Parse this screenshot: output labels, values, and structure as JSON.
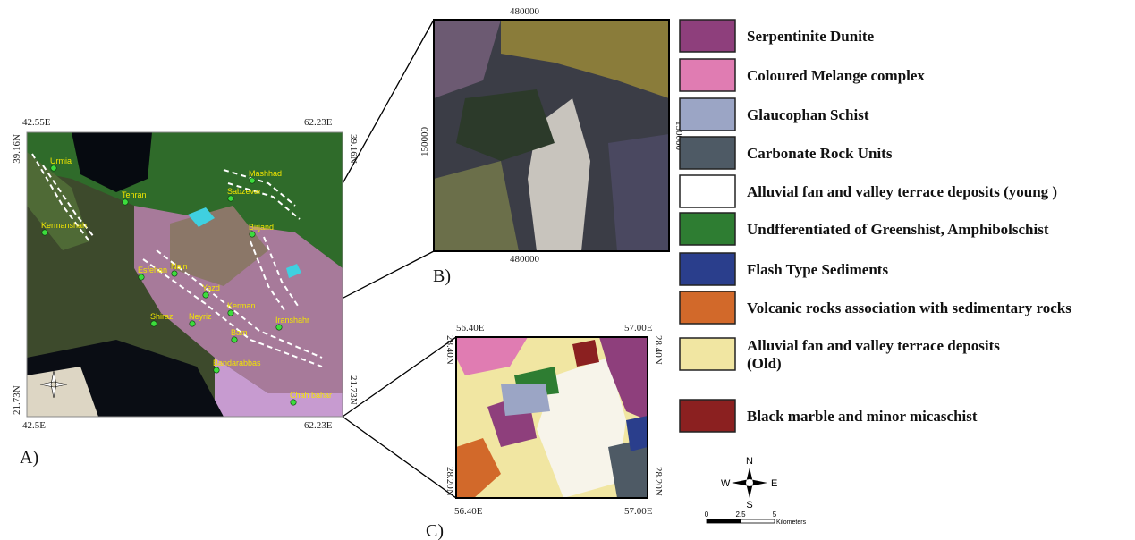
{
  "panel_a": {
    "label": "A)",
    "coords": {
      "top_left": "42.55E",
      "top_right": "62.23E",
      "bottom_left": "42.5E",
      "bottom_right": "62.23E",
      "left_top": "39.16N",
      "right_top": "39.16N",
      "left_bottom": "21.73N",
      "right_bottom": "21.73N"
    },
    "cities": [
      "Urmia",
      "Tehran",
      "Mashhad",
      "Sabzevar",
      "Kermanshah",
      "Esfehan",
      "Nain",
      "Birjand",
      "Yazd",
      "Kerman",
      "Shiraz",
      "Neyriz",
      "Bam",
      "Iranshahr",
      "Bandarabbas",
      "Chah bahar"
    ]
  },
  "panel_b": {
    "label": "B)",
    "top": "480000",
    "bottom": "480000",
    "left": "150000",
    "right": "150000"
  },
  "panel_c": {
    "label": "C)",
    "coords": {
      "top_left": "56.40E",
      "top_right": "57.00E",
      "bottom_left": "56.40E",
      "bottom_right": "57.00E",
      "left_top": "28.40N",
      "right_top": "28.40N",
      "left_bottom": "28.20N",
      "right_bottom": "28.20N"
    }
  },
  "legend": [
    {
      "label": "Serpentinite Dunite",
      "color": "#8e3f7c"
    },
    {
      "label": "Coloured Melange complex",
      "color": "#e07cb2"
    },
    {
      "label": "Glaucophan Schist",
      "color": "#9ba5c5"
    },
    {
      "label": "Carbonate Rock Units",
      "color": "#4e5a65"
    },
    {
      "label": "Alluvial fan and valley terrace deposits (young )",
      "color": "#ffffff"
    },
    {
      "label": "Undfferentiated of Greenshist, Amphibolschist",
      "color": "#2e7d32"
    },
    {
      "label": "Flash Type Sediments",
      "color": "#2a3e8c"
    },
    {
      "label": "Volcanic rocks association with sedimentary rocks",
      "color": "#d2692a"
    },
    {
      "label": "Alluvial fan and valley terrace deposits (Old)",
      "color": "#f1e6a2"
    },
    {
      "label": "Black marble and minor micaschist",
      "color": "#8b2020"
    }
  ],
  "scale": {
    "north": "N",
    "south": "S",
    "east": "E",
    "west": "W",
    "ticks": [
      "0",
      "2.5",
      "5"
    ],
    "unit": "Kilometers"
  }
}
